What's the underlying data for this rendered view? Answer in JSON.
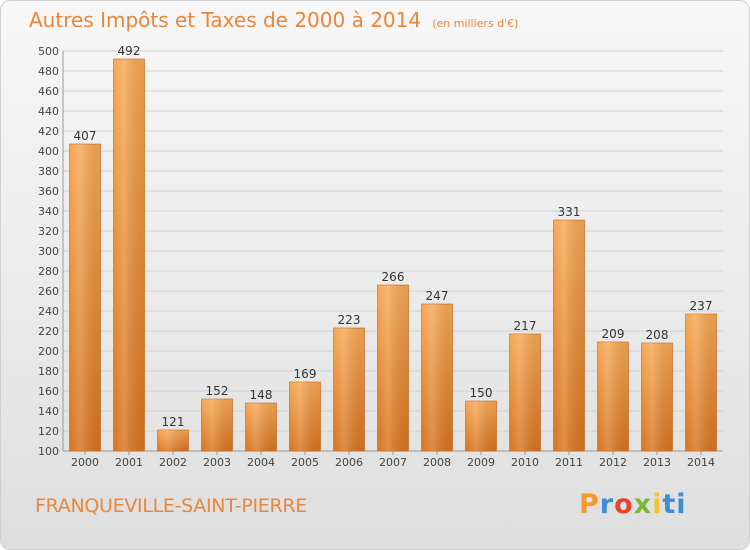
{
  "header": {
    "title": "Autres Impôts et Taxes de 2000 à 2014",
    "unit": "(en milliers d'€)"
  },
  "footer": {
    "town": "FRANQUEVILLE-SAINT-PIERRE",
    "brand": "Proxiti"
  },
  "colors": {
    "bar_light": "#f6a650",
    "bar_dark": "#d2691e",
    "text_accent": "#e8863c"
  },
  "chart_data": {
    "type": "bar",
    "categories": [
      "2000",
      "2001",
      "2002",
      "2003",
      "2004",
      "2005",
      "2006",
      "2007",
      "2008",
      "2009",
      "2010",
      "2011",
      "2012",
      "2013",
      "2014"
    ],
    "values": [
      407,
      492,
      121,
      152,
      148,
      169,
      223,
      266,
      247,
      150,
      217,
      331,
      209,
      208,
      237
    ],
    "title": "Autres Impôts et Taxes de 2000 à 2014",
    "subtitle": "(en milliers d'€)",
    "xlabel": "",
    "ylabel": "",
    "ylim": [
      100,
      500
    ],
    "yticks": [
      100,
      120,
      140,
      160,
      180,
      200,
      220,
      240,
      260,
      280,
      300,
      320,
      340,
      360,
      380,
      400,
      420,
      440,
      460,
      480,
      500
    ],
    "grid": true,
    "data_labels": true
  }
}
